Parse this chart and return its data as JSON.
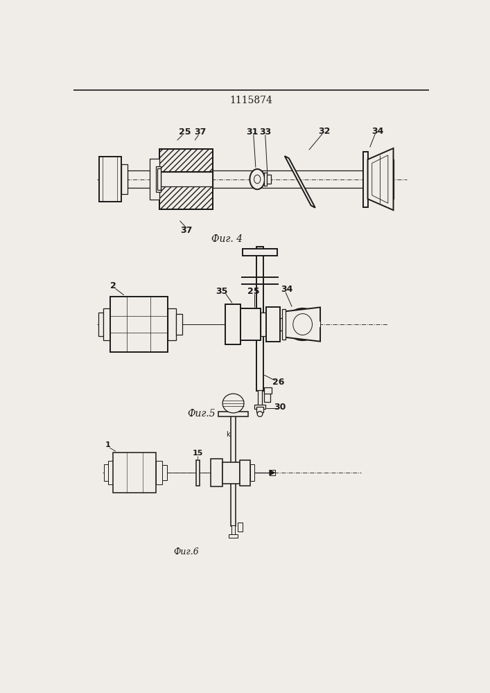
{
  "title": "1115874",
  "title_fontsize": 10,
  "fig4_label": "Фиг. 4",
  "fig5_label": "Фиг.5",
  "fig6_label": "Фиг.6",
  "line_color": "#1a1a1a",
  "bg_color": "#f0ede8"
}
